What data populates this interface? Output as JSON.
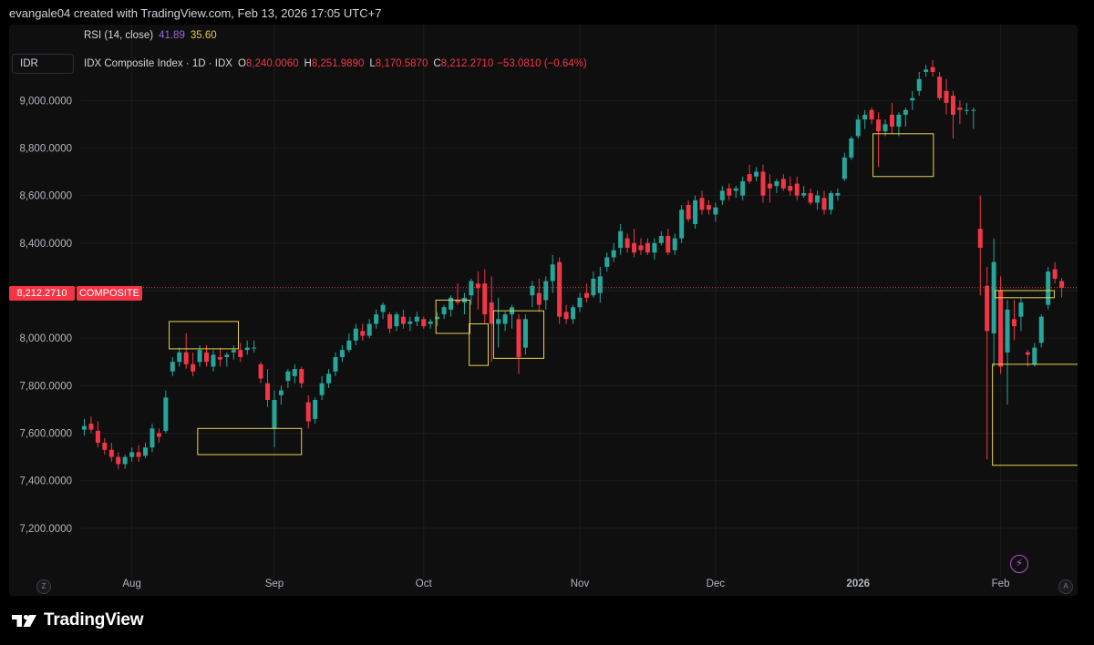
{
  "header": {
    "attribution": "evangale04 created with TradingView.com, Feb 13, 2026 17:05 UTC+7"
  },
  "indicator": {
    "rsi_label": "RSI (14, close)",
    "rsi_value_1": "41.89",
    "rsi_value_2": "35.60"
  },
  "currency": "IDR",
  "legend": {
    "title": "IDX Composite Index · 1D · IDX",
    "o_label": "O",
    "o_value": "8,240.0060",
    "h_label": "H",
    "h_value": "8,251.9890",
    "l_label": "L",
    "l_value": "8,170.5870",
    "c_label": "C",
    "c_value": "8,212.2710",
    "change": "−53.0810 (−0.64%)"
  },
  "price_tag": "8,212.2710",
  "symbol_tag": "COMPOSITE",
  "controls": {
    "z_label": "Z",
    "a_label": "A",
    "bolt": "⚡"
  },
  "footer": {
    "brand": "TradingView"
  },
  "colors": {
    "up": "#26a69a",
    "down": "#f23645",
    "background": "#0f0f0f",
    "grid": "#1c1c1c",
    "box": "#e8d44d",
    "axis_text": "#b2b5be"
  },
  "chart_data": {
    "type": "candlestick",
    "title": "IDX Composite Index · 1D · IDX",
    "ylim": [
      7050,
      9300
    ],
    "y_ticks": [
      "7,200.0000",
      "7,400.0000",
      "7,600.0000",
      "7,800.0000",
      "8,000.0000",
      "8,200.0000",
      "8,400.0000",
      "8,600.0000",
      "8,800.0000",
      "9,000.0000"
    ],
    "y_tick_values": [
      7200,
      7400,
      7600,
      7800,
      8000,
      8200,
      8400,
      8600,
      8800,
      9000
    ],
    "x_labels": [
      {
        "label": "Aug",
        "index": 7,
        "bold": false
      },
      {
        "label": "Sep",
        "index": 28,
        "bold": false
      },
      {
        "label": "Oct",
        "index": 50,
        "bold": false
      },
      {
        "label": "Nov",
        "index": 73,
        "bold": false
      },
      {
        "label": "Dec",
        "index": 93,
        "bold": false
      },
      {
        "label": "2026",
        "index": 114,
        "bold": true
      },
      {
        "label": "Feb",
        "index": 135,
        "bold": false
      }
    ],
    "last_close": 8212.271,
    "candles": [
      {
        "o": 7615,
        "h": 7660,
        "l": 7590,
        "c": 7630
      },
      {
        "o": 7640,
        "h": 7670,
        "l": 7600,
        "c": 7615
      },
      {
        "o": 7610,
        "h": 7650,
        "l": 7540,
        "c": 7560
      },
      {
        "o": 7560,
        "h": 7580,
        "l": 7510,
        "c": 7530
      },
      {
        "o": 7530,
        "h": 7560,
        "l": 7480,
        "c": 7500
      },
      {
        "o": 7500,
        "h": 7520,
        "l": 7450,
        "c": 7470
      },
      {
        "o": 7470,
        "h": 7510,
        "l": 7450,
        "c": 7500
      },
      {
        "o": 7500,
        "h": 7540,
        "l": 7480,
        "c": 7520
      },
      {
        "o": 7520,
        "h": 7550,
        "l": 7480,
        "c": 7500
      },
      {
        "o": 7505,
        "h": 7560,
        "l": 7495,
        "c": 7540
      },
      {
        "o": 7540,
        "h": 7640,
        "l": 7520,
        "c": 7620
      },
      {
        "o": 7600,
        "h": 7620,
        "l": 7560,
        "c": 7585
      },
      {
        "o": 7610,
        "h": 7780,
        "l": 7600,
        "c": 7750
      },
      {
        "o": 7860,
        "h": 7920,
        "l": 7840,
        "c": 7900
      },
      {
        "o": 7900,
        "h": 7960,
        "l": 7880,
        "c": 7940
      },
      {
        "o": 7940,
        "h": 8020,
        "l": 7870,
        "c": 7890
      },
      {
        "o": 7890,
        "h": 7940,
        "l": 7840,
        "c": 7860
      },
      {
        "o": 7900,
        "h": 7970,
        "l": 7880,
        "c": 7950
      },
      {
        "o": 7940,
        "h": 7970,
        "l": 7880,
        "c": 7900
      },
      {
        "o": 7880,
        "h": 7950,
        "l": 7860,
        "c": 7930
      },
      {
        "o": 7920,
        "h": 7960,
        "l": 7880,
        "c": 7910
      },
      {
        "o": 7920,
        "h": 7940,
        "l": 7880,
        "c": 7930
      },
      {
        "o": 7940,
        "h": 7970,
        "l": 7910,
        "c": 7950
      },
      {
        "o": 7950,
        "h": 7980,
        "l": 7900,
        "c": 7920
      },
      {
        "o": 7950,
        "h": 7990,
        "l": 7930,
        "c": 7960
      },
      {
        "o": 7960,
        "h": 7990,
        "l": 7940,
        "c": 7960
      },
      {
        "o": 7890,
        "h": 7900,
        "l": 7810,
        "c": 7830
      },
      {
        "o": 7810,
        "h": 7870,
        "l": 7710,
        "c": 7740
      },
      {
        "o": 7620,
        "h": 7780,
        "l": 7540,
        "c": 7740
      },
      {
        "o": 7760,
        "h": 7800,
        "l": 7720,
        "c": 7780
      },
      {
        "o": 7820,
        "h": 7870,
        "l": 7790,
        "c": 7860
      },
      {
        "o": 7840,
        "h": 7890,
        "l": 7810,
        "c": 7870
      },
      {
        "o": 7870,
        "h": 7880,
        "l": 7790,
        "c": 7810
      },
      {
        "o": 7730,
        "h": 7760,
        "l": 7620,
        "c": 7650
      },
      {
        "o": 7660,
        "h": 7750,
        "l": 7640,
        "c": 7740
      },
      {
        "o": 7760,
        "h": 7840,
        "l": 7740,
        "c": 7810
      },
      {
        "o": 7810,
        "h": 7870,
        "l": 7790,
        "c": 7850
      },
      {
        "o": 7860,
        "h": 7940,
        "l": 7840,
        "c": 7920
      },
      {
        "o": 7920,
        "h": 7970,
        "l": 7900,
        "c": 7950
      },
      {
        "o": 7950,
        "h": 8020,
        "l": 7940,
        "c": 7990
      },
      {
        "o": 7990,
        "h": 8060,
        "l": 7970,
        "c": 8040
      },
      {
        "o": 8030,
        "h": 8060,
        "l": 7990,
        "c": 8010
      },
      {
        "o": 8010,
        "h": 8080,
        "l": 8000,
        "c": 8060
      },
      {
        "o": 8060,
        "h": 8120,
        "l": 8040,
        "c": 8100
      },
      {
        "o": 8110,
        "h": 8150,
        "l": 8080,
        "c": 8140
      },
      {
        "o": 8100,
        "h": 8110,
        "l": 8020,
        "c": 8040
      },
      {
        "o": 8050,
        "h": 8110,
        "l": 8030,
        "c": 8100
      },
      {
        "o": 8090,
        "h": 8120,
        "l": 8040,
        "c": 8060
      },
      {
        "o": 8060,
        "h": 8090,
        "l": 8030,
        "c": 8070
      },
      {
        "o": 8070,
        "h": 8110,
        "l": 8050,
        "c": 8090
      },
      {
        "o": 8080,
        "h": 8090,
        "l": 8040,
        "c": 8050
      },
      {
        "o": 8060,
        "h": 8080,
        "l": 8040,
        "c": 8070
      },
      {
        "o": 8080,
        "h": 8110,
        "l": 8050,
        "c": 8090
      },
      {
        "o": 8100,
        "h": 8140,
        "l": 8080,
        "c": 8130
      },
      {
        "o": 8120,
        "h": 8180,
        "l": 8090,
        "c": 8170
      },
      {
        "o": 8160,
        "h": 8230,
        "l": 8140,
        "c": 8150
      },
      {
        "o": 8150,
        "h": 8190,
        "l": 8100,
        "c": 8170
      },
      {
        "o": 8180,
        "h": 8250,
        "l": 8140,
        "c": 8240
      },
      {
        "o": 8230,
        "h": 8280,
        "l": 8120,
        "c": 8210
      },
      {
        "o": 8230,
        "h": 8290,
        "l": 8060,
        "c": 8100
      },
      {
        "o": 8150,
        "h": 8260,
        "l": 7900,
        "c": 8060
      },
      {
        "o": 8060,
        "h": 8170,
        "l": 7960,
        "c": 8080
      },
      {
        "o": 8060,
        "h": 8110,
        "l": 8030,
        "c": 8100
      },
      {
        "o": 8100,
        "h": 8140,
        "l": 8040,
        "c": 8130
      },
      {
        "o": 8080,
        "h": 8100,
        "l": 7850,
        "c": 7920
      },
      {
        "o": 7960,
        "h": 8100,
        "l": 7930,
        "c": 8080
      },
      {
        "o": 8180,
        "h": 8240,
        "l": 8130,
        "c": 8220
      },
      {
        "o": 8190,
        "h": 8250,
        "l": 8110,
        "c": 8140
      },
      {
        "o": 8160,
        "h": 8260,
        "l": 8120,
        "c": 8240
      },
      {
        "o": 8240,
        "h": 8350,
        "l": 8190,
        "c": 8310
      },
      {
        "o": 8320,
        "h": 8340,
        "l": 8060,
        "c": 8090
      },
      {
        "o": 8110,
        "h": 8140,
        "l": 8060,
        "c": 8080
      },
      {
        "o": 8080,
        "h": 8140,
        "l": 8060,
        "c": 8130
      },
      {
        "o": 8130,
        "h": 8190,
        "l": 8110,
        "c": 8170
      },
      {
        "o": 8190,
        "h": 8230,
        "l": 8150,
        "c": 8170
      },
      {
        "o": 8180,
        "h": 8280,
        "l": 8170,
        "c": 8250
      },
      {
        "o": 8190,
        "h": 8300,
        "l": 8150,
        "c": 8260
      },
      {
        "o": 8300,
        "h": 8360,
        "l": 8280,
        "c": 8340
      },
      {
        "o": 8340,
        "h": 8400,
        "l": 8320,
        "c": 8370
      },
      {
        "o": 8380,
        "h": 8480,
        "l": 8350,
        "c": 8450
      },
      {
        "o": 8420,
        "h": 8440,
        "l": 8360,
        "c": 8380
      },
      {
        "o": 8400,
        "h": 8460,
        "l": 8340,
        "c": 8360
      },
      {
        "o": 8390,
        "h": 8420,
        "l": 8350,
        "c": 8370
      },
      {
        "o": 8400,
        "h": 8420,
        "l": 8350,
        "c": 8360
      },
      {
        "o": 8360,
        "h": 8420,
        "l": 8330,
        "c": 8400
      },
      {
        "o": 8400,
        "h": 8450,
        "l": 8390,
        "c": 8430
      },
      {
        "o": 8430,
        "h": 8460,
        "l": 8350,
        "c": 8360
      },
      {
        "o": 8370,
        "h": 8440,
        "l": 8350,
        "c": 8420
      },
      {
        "o": 8420,
        "h": 8560,
        "l": 8400,
        "c": 8540
      },
      {
        "o": 8560,
        "h": 8580,
        "l": 8490,
        "c": 8500
      },
      {
        "o": 8480,
        "h": 8600,
        "l": 8460,
        "c": 8580
      },
      {
        "o": 8590,
        "h": 8620,
        "l": 8520,
        "c": 8540
      },
      {
        "o": 8560,
        "h": 8580,
        "l": 8520,
        "c": 8540
      },
      {
        "o": 8520,
        "h": 8570,
        "l": 8490,
        "c": 8550
      },
      {
        "o": 8580,
        "h": 8640,
        "l": 8560,
        "c": 8620
      },
      {
        "o": 8630,
        "h": 8650,
        "l": 8580,
        "c": 8600
      },
      {
        "o": 8620,
        "h": 8640,
        "l": 8590,
        "c": 8630
      },
      {
        "o": 8600,
        "h": 8680,
        "l": 8580,
        "c": 8660
      },
      {
        "o": 8690,
        "h": 8730,
        "l": 8650,
        "c": 8660
      },
      {
        "o": 8680,
        "h": 8720,
        "l": 8660,
        "c": 8700
      },
      {
        "o": 8700,
        "h": 8730,
        "l": 8570,
        "c": 8600
      },
      {
        "o": 8650,
        "h": 8690,
        "l": 8570,
        "c": 8630
      },
      {
        "o": 8640,
        "h": 8670,
        "l": 8610,
        "c": 8660
      },
      {
        "o": 8670,
        "h": 8690,
        "l": 8620,
        "c": 8630
      },
      {
        "o": 8640,
        "h": 8680,
        "l": 8600,
        "c": 8620
      },
      {
        "o": 8650,
        "h": 8680,
        "l": 8580,
        "c": 8600
      },
      {
        "o": 8600,
        "h": 8640,
        "l": 8590,
        "c": 8610
      },
      {
        "o": 8610,
        "h": 8630,
        "l": 8560,
        "c": 8570
      },
      {
        "o": 8570,
        "h": 8620,
        "l": 8540,
        "c": 8600
      },
      {
        "o": 8590,
        "h": 8620,
        "l": 8520,
        "c": 8540
      },
      {
        "o": 8540,
        "h": 8620,
        "l": 8520,
        "c": 8610
      },
      {
        "o": 8600,
        "h": 8630,
        "l": 8580,
        "c": 8610
      },
      {
        "o": 8670,
        "h": 8780,
        "l": 8660,
        "c": 8760
      },
      {
        "o": 8760,
        "h": 8850,
        "l": 8750,
        "c": 8840
      },
      {
        "o": 8850,
        "h": 8940,
        "l": 8840,
        "c": 8920
      },
      {
        "o": 8920,
        "h": 8960,
        "l": 8880,
        "c": 8940
      },
      {
        "o": 8960,
        "h": 8970,
        "l": 8900,
        "c": 8920
      },
      {
        "o": 8920,
        "h": 8950,
        "l": 8720,
        "c": 8870
      },
      {
        "o": 8870,
        "h": 8920,
        "l": 8850,
        "c": 8900
      },
      {
        "o": 8940,
        "h": 8990,
        "l": 8860,
        "c": 8890
      },
      {
        "o": 8890,
        "h": 8950,
        "l": 8850,
        "c": 8940
      },
      {
        "o": 8940,
        "h": 8970,
        "l": 8890,
        "c": 8960
      },
      {
        "o": 9000,
        "h": 9040,
        "l": 8960,
        "c": 9010
      },
      {
        "o": 9040,
        "h": 9120,
        "l": 9020,
        "c": 9090
      },
      {
        "o": 9120,
        "h": 9150,
        "l": 9100,
        "c": 9130
      },
      {
        "o": 9140,
        "h": 9170,
        "l": 9100,
        "c": 9120
      },
      {
        "o": 9100,
        "h": 9120,
        "l": 9000,
        "c": 9010
      },
      {
        "o": 9040,
        "h": 9090,
        "l": 8940,
        "c": 8990
      },
      {
        "o": 9020,
        "h": 9040,
        "l": 8840,
        "c": 8940
      },
      {
        "o": 8970,
        "h": 9000,
        "l": 8900,
        "c": 8960
      },
      {
        "o": 8960,
        "h": 8990,
        "l": 8940,
        "c": 8960
      },
      {
        "o": 8960,
        "h": 8970,
        "l": 8880,
        "c": 8960
      },
      {
        "o": 8460,
        "h": 8600,
        "l": 8180,
        "c": 8380
      },
      {
        "o": 8220,
        "h": 8300,
        "l": 7490,
        "c": 8030
      },
      {
        "o": 8020,
        "h": 8420,
        "l": 7880,
        "c": 8320
      },
      {
        "o": 8200,
        "h": 8260,
        "l": 7850,
        "c": 7880
      },
      {
        "o": 7940,
        "h": 8160,
        "l": 7720,
        "c": 8120
      },
      {
        "o": 8080,
        "h": 8160,
        "l": 7990,
        "c": 8050
      },
      {
        "o": 8090,
        "h": 8170,
        "l": 8030,
        "c": 8150
      },
      {
        "o": 7940,
        "h": 7950,
        "l": 7880,
        "c": 7930
      },
      {
        "o": 7890,
        "h": 7980,
        "l": 7880,
        "c": 7960
      },
      {
        "o": 7980,
        "h": 8100,
        "l": 7960,
        "c": 8090
      },
      {
        "o": 8140,
        "h": 8300,
        "l": 8120,
        "c": 8280
      },
      {
        "o": 8290,
        "h": 8320,
        "l": 8230,
        "c": 8250
      },
      {
        "o": 8240,
        "h": 8252,
        "l": 8171,
        "c": 8212
      }
    ],
    "annotation_boxes": [
      {
        "i0": 12.5,
        "i1": 22.7,
        "y0": 8070,
        "y1": 7955
      },
      {
        "i0": 16.7,
        "i1": 32.0,
        "y0": 7620,
        "y1": 7510
      },
      {
        "i0": 51.8,
        "i1": 56.8,
        "y0": 8160,
        "y1": 8020
      },
      {
        "i0": 56.7,
        "i1": 59.5,
        "y0": 8060,
        "y1": 7885
      },
      {
        "i0": 60.3,
        "i1": 67.7,
        "y0": 8115,
        "y1": 7915
      },
      {
        "i0": 116.2,
        "i1": 125.1,
        "y0": 8860,
        "y1": 8680
      },
      {
        "i0": 133.8,
        "i1": 149.6,
        "y0": 7890,
        "y1": 7465
      },
      {
        "i0": 134.2,
        "i1": 142.9,
        "y0": 8200,
        "y1": 8170
      }
    ]
  }
}
